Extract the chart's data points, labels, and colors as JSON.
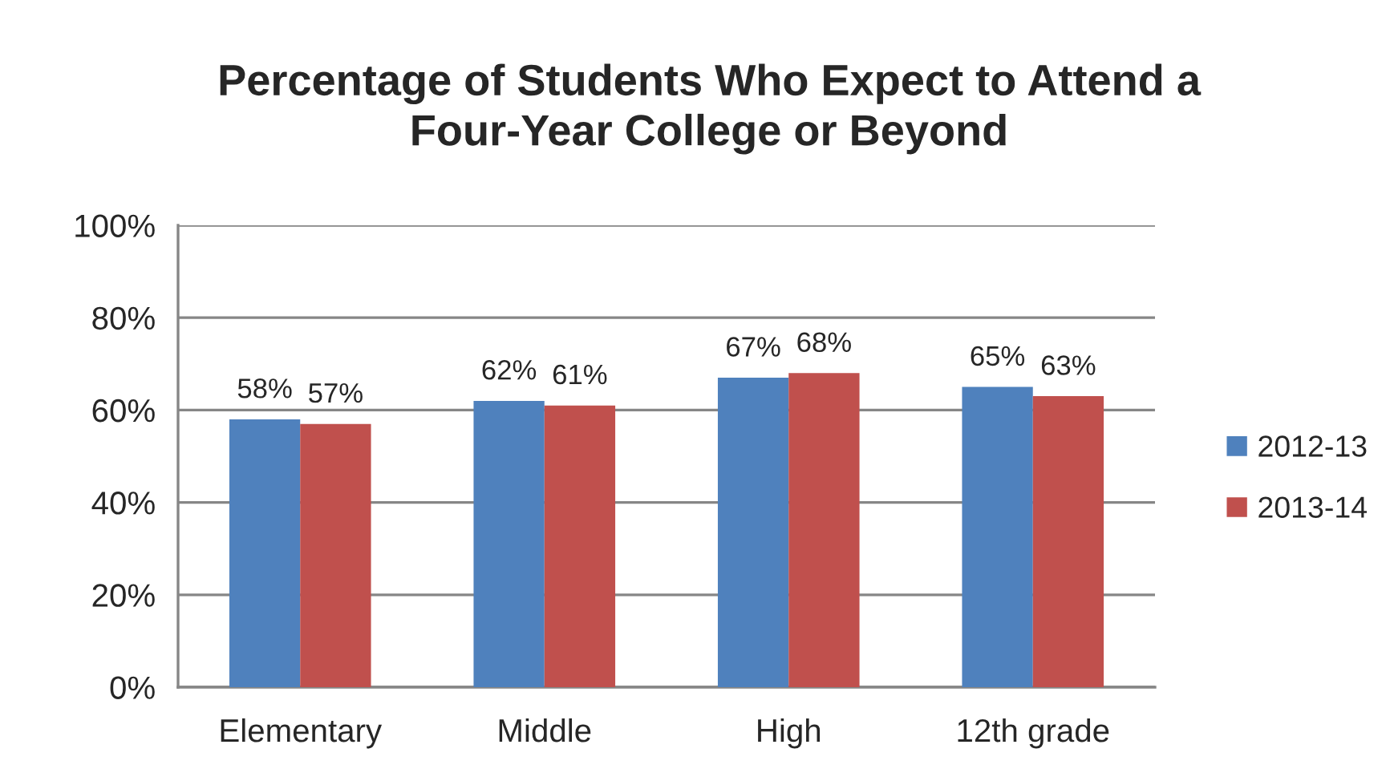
{
  "chart_data": {
    "type": "bar",
    "title": "Percentage of Students Who Expect to Attend a\nFour-Year College or Beyond",
    "categories": [
      "Elementary",
      "Middle",
      "High",
      "12th grade"
    ],
    "series": [
      {
        "name": "2012-13",
        "color": "#4f81bd",
        "values": [
          58,
          62,
          67,
          65
        ],
        "value_labels": [
          "58%",
          "62%",
          "67%",
          "65%"
        ]
      },
      {
        "name": "2013-14",
        "color": "#c0504d",
        "values": [
          57,
          61,
          68,
          63
        ],
        "value_labels": [
          "57%",
          "61%",
          "68%",
          "63%"
        ]
      }
    ],
    "ylim": [
      0,
      100
    ],
    "yticks": [
      {
        "value": 0,
        "label": "0%"
      },
      {
        "value": 20,
        "label": "20%"
      },
      {
        "value": 40,
        "label": "40%"
      },
      {
        "value": 60,
        "label": "60%"
      },
      {
        "value": 80,
        "label": "80%"
      },
      {
        "value": 100,
        "label": "100%"
      }
    ],
    "grid": "y",
    "legend": "right"
  }
}
